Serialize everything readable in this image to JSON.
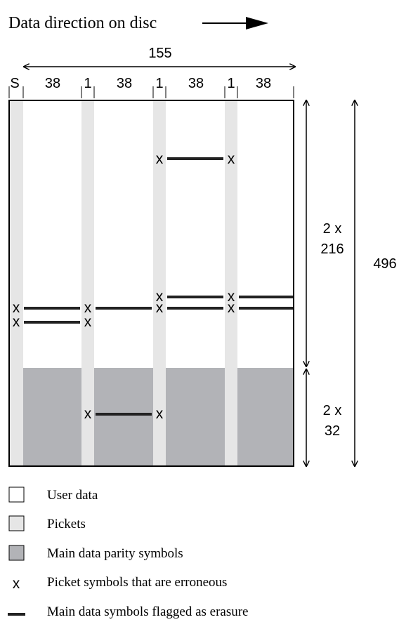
{
  "header": {
    "direction_label": "Data direction on disc"
  },
  "dimensions": {
    "total_width": "155",
    "columns": [
      "S",
      "38",
      "1",
      "38",
      "1",
      "38",
      "1",
      "38"
    ],
    "user_rows_line1": "2 x",
    "user_rows_line2": "216",
    "parity_rows_line1": "2 x",
    "parity_rows_line2": "32",
    "total_height": "496"
  },
  "marks": {
    "error_glyph": "x"
  },
  "legend": {
    "items": [
      {
        "label": "User data",
        "swatch": "#ffffff"
      },
      {
        "label": "Pickets",
        "swatch": "#e6e6e6"
      },
      {
        "label": "Main data parity symbols",
        "swatch": "#b2b3b7"
      },
      {
        "label": "Picket symbols that are erroneous",
        "glyph": "x"
      },
      {
        "label": "Main data symbols flagged as erasure",
        "glyph": "bar"
      }
    ]
  },
  "colors": {
    "picket": "#e6e6e6",
    "parity": "#b2b3b7",
    "user_data": "#ffffff",
    "ink": "#000000",
    "erasure_line": "#222222"
  }
}
